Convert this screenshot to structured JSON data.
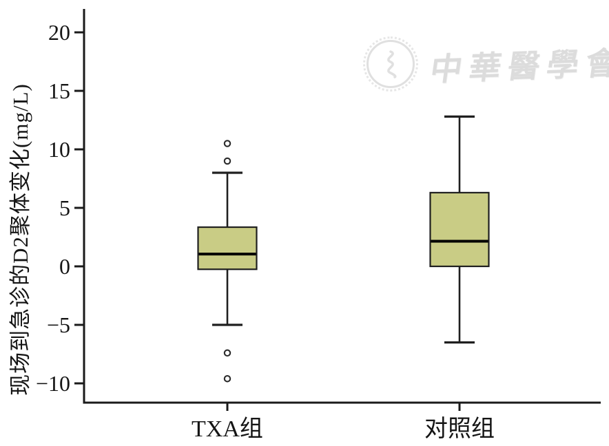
{
  "watermark": {
    "text": "中華醫學會",
    "color": "#dcdcdc"
  },
  "chart_data": {
    "type": "boxplot",
    "title": "",
    "xlabel": "",
    "ylabel": "现场到急诊的D2聚体变化(mg/L)",
    "categories": [
      "TXA组",
      "对照组"
    ],
    "y_ticks": [
      20,
      15,
      10,
      5,
      0,
      -5,
      -10
    ],
    "y_tick_labels": [
      "20",
      "15",
      "10",
      "5",
      "0",
      "−5",
      "−10"
    ],
    "ylim": [
      -11.5,
      21.5
    ],
    "grid": false,
    "legend": "none",
    "series": [
      {
        "name": "TXA组",
        "whisker_low": -5.0,
        "q1": -0.25,
        "median": 1.05,
        "q3": 3.35,
        "whisker_high": 8.0,
        "outliers": [
          10.5,
          9.0,
          -7.4,
          -9.6
        ]
      },
      {
        "name": "对照组",
        "whisker_low": -6.5,
        "q1": 0.0,
        "median": 2.15,
        "q3": 6.3,
        "whisker_high": 12.8,
        "outliers": []
      }
    ],
    "box_fill": "#c9cc85",
    "box_border": "#1f1f1f",
    "median_color": "#000000",
    "axis_color": "#1a1a1a",
    "outlier_color": "#2b2b2b",
    "tick_label_color": "#151515"
  }
}
